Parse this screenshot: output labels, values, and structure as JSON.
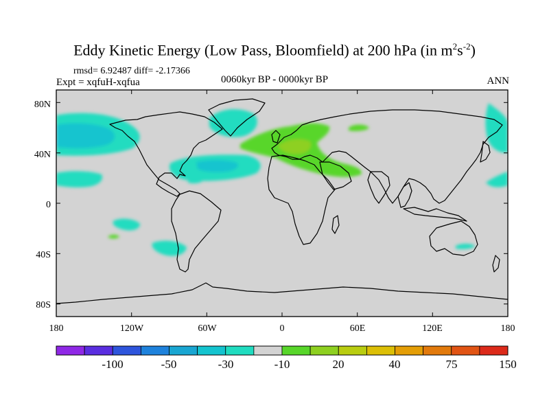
{
  "header": {
    "title_main": "Eddy Kinetic Energy (Low Pass, Bloomfield) at 200 hPa (in m",
    "title_sup1": "2",
    "title_s": "s",
    "title_sup2": "-2",
    "title_close": ")",
    "stats": "rmsd= 6.92487 diff= -2.17366",
    "experiment": "Expt = xqfuH-xqfua",
    "period": "0060kyr BP - 0000kyr BP",
    "season": "ANN"
  },
  "map": {
    "projection": "cylindrical equidistant",
    "lon_range": [
      -180,
      180
    ],
    "lat_range": [
      -90,
      90
    ],
    "lat_ticks": [
      "80N",
      "40N",
      "0",
      "40S",
      "80S"
    ],
    "lon_ticks": [
      "180",
      "120W",
      "60W",
      "0",
      "60E",
      "120E",
      "180"
    ],
    "land_color": "#d3d3d3",
    "coast_color": "#000000"
  },
  "colorbar": {
    "colors": [
      "#8f28e6",
      "#5a2ee0",
      "#2e55dc",
      "#1e82dc",
      "#19a6d2",
      "#14c4cf",
      "#20dcc0",
      "#d3d3d3",
      "#58d62a",
      "#8ed020",
      "#b9cd10",
      "#dcbf06",
      "#e49e06",
      "#e27a0c",
      "#e15414",
      "#dc2a1a"
    ],
    "labels": [
      "-100",
      "-50",
      "-30",
      "-10",
      "20",
      "40",
      "75",
      "150"
    ]
  }
}
